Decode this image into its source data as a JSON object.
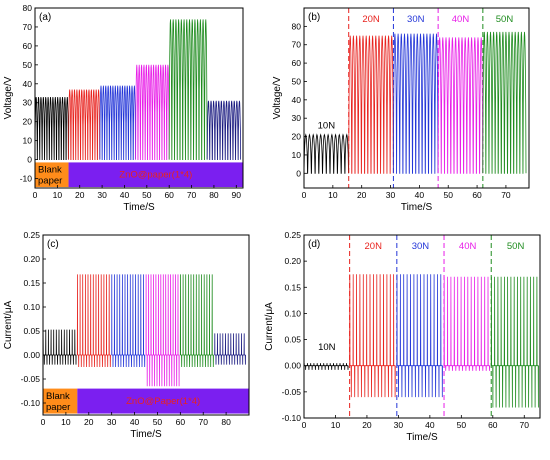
{
  "chart_data": [
    {
      "type": "line",
      "panel_label": "(a)",
      "xlabel": "Time/S",
      "ylabel": "Voltage/V",
      "xlim": [
        0,
        93
      ],
      "ylim": [
        -15,
        80
      ],
      "xticks": [
        0,
        10,
        20,
        30,
        40,
        50,
        60,
        70,
        80,
        90
      ],
      "yticks": [
        -10,
        0,
        10,
        20,
        30,
        40,
        50,
        60,
        70,
        80
      ],
      "grid": false,
      "series": [
        {
          "color": "#000000",
          "x_range": [
            0,
            15
          ],
          "peak": 33,
          "trough": 0,
          "cycles": 14
        },
        {
          "color": "#e8231f",
          "x_range": [
            15,
            29
          ],
          "peak": 37,
          "trough": 0,
          "cycles": 13
        },
        {
          "color": "#2436d8",
          "x_range": [
            29,
            45
          ],
          "peak": 39,
          "trough": 0,
          "cycles": 15
        },
        {
          "color": "#e81de8",
          "x_range": [
            45,
            60
          ],
          "peak": 50,
          "trough": 0,
          "cycles": 14
        },
        {
          "color": "#1f8c1f",
          "x_range": [
            60,
            77
          ],
          "peak": 74,
          "trough": 0,
          "cycles": 14
        },
        {
          "color": "#1a1a80",
          "x_range": [
            77,
            92
          ],
          "peak": 31,
          "trough": 0,
          "cycles": 13
        }
      ],
      "bands": [
        {
          "label": "Blank paper",
          "x_range": [
            0,
            15
          ],
          "color": "#ff8c1a"
        },
        {
          "label": "ZnO@paper(1*4)",
          "x_range": [
            15,
            93
          ],
          "color": "#7b1ff0"
        }
      ]
    },
    {
      "type": "line",
      "panel_label": "(b)",
      "xlabel": "Time/S",
      "ylabel": "Voltage/V",
      "xlim": [
        0,
        78
      ],
      "ylim": [
        -8,
        90
      ],
      "xticks": [
        0,
        10,
        20,
        30,
        40,
        50,
        60,
        70
      ],
      "yticks": [
        0,
        10,
        20,
        30,
        40,
        50,
        60,
        70,
        80
      ],
      "grid": false,
      "series": [
        {
          "label": "10N",
          "color": "#000000",
          "x_range": [
            0,
            15.5
          ],
          "peak": 21,
          "trough": 0,
          "cycles": 12
        },
        {
          "label": "20N",
          "color": "#e8231f",
          "x_range": [
            15.5,
            31
          ],
          "peak": 75,
          "trough": 0,
          "cycles": 14
        },
        {
          "label": "30N",
          "color": "#2436d8",
          "x_range": [
            31,
            46.5
          ],
          "peak": 76,
          "trough": 0,
          "cycles": 14
        },
        {
          "label": "40N",
          "color": "#e81de8",
          "x_range": [
            46.5,
            62
          ],
          "peak": 74,
          "trough": 0,
          "cycles": 14
        },
        {
          "label": "50N",
          "color": "#1f8c1f",
          "x_range": [
            62,
            77
          ],
          "peak": 77,
          "trough": 0,
          "cycles": 14
        }
      ],
      "dividers": [
        15.5,
        31,
        46.5,
        62
      ]
    },
    {
      "type": "line",
      "panel_label": "(c)",
      "xlabel": "Time/S",
      "ylabel": "Current/μA",
      "xlim": [
        0,
        90
      ],
      "ylim": [
        -0.125,
        0.25
      ],
      "xticks": [
        0,
        10,
        20,
        30,
        40,
        50,
        60,
        70,
        80
      ],
      "yticks": [
        -0.1,
        -0.05,
        0.0,
        0.05,
        0.1,
        0.15,
        0.2,
        0.25
      ],
      "grid": false,
      "series": [
        {
          "color": "#000000",
          "x_range": [
            0,
            15
          ],
          "peak": 0.053,
          "trough": -0.02,
          "cycles": 13
        },
        {
          "color": "#e8231f",
          "x_range": [
            15,
            30
          ],
          "peak": 0.168,
          "trough": -0.025,
          "cycles": 13
        },
        {
          "color": "#2436d8",
          "x_range": [
            30,
            45
          ],
          "peak": 0.168,
          "trough": -0.025,
          "cycles": 13
        },
        {
          "color": "#e81de8",
          "x_range": [
            45,
            60
          ],
          "peak": 0.168,
          "trough": -0.065,
          "cycles": 14
        },
        {
          "color": "#1f8c1f",
          "x_range": [
            60,
            75
          ],
          "peak": 0.168,
          "trough": -0.025,
          "cycles": 13
        },
        {
          "color": "#1a1a80",
          "x_range": [
            75,
            89
          ],
          "peak": 0.045,
          "trough": -0.02,
          "cycles": 12
        }
      ],
      "bands": [
        {
          "label": "Blank paper",
          "x_range": [
            0,
            15
          ],
          "color": "#ff8c1a"
        },
        {
          "label": "ZnO@Paper(1*4)",
          "x_range": [
            15,
            90
          ],
          "color": "#7b1ff0"
        }
      ]
    },
    {
      "type": "line",
      "panel_label": "(d)",
      "xlabel": "Time/S",
      "ylabel": "Current/μA",
      "xlim": [
        0,
        75
      ],
      "ylim": [
        -0.1,
        0.25
      ],
      "xticks": [
        0,
        10,
        20,
        30,
        40,
        50,
        60,
        70
      ],
      "yticks": [
        -0.1,
        -0.05,
        0.0,
        0.05,
        0.1,
        0.15,
        0.2,
        0.25
      ],
      "grid": false,
      "series": [
        {
          "label": "10N",
          "color": "#000000",
          "x_range": [
            0,
            14.5
          ],
          "peak": 0.005,
          "trough": -0.008,
          "cycles": 14
        },
        {
          "label": "20N",
          "color": "#e8231f",
          "x_range": [
            14.5,
            29.5
          ],
          "peak": 0.175,
          "trough": -0.06,
          "cycles": 14
        },
        {
          "label": "30N",
          "color": "#2436d8",
          "x_range": [
            29.5,
            44.5
          ],
          "peak": 0.175,
          "trough": -0.06,
          "cycles": 14
        },
        {
          "label": "40N",
          "color": "#e81de8",
          "x_range": [
            44.5,
            59.5
          ],
          "peak": 0.17,
          "trough": -0.01,
          "cycles": 14
        },
        {
          "label": "50N",
          "color": "#1f8c1f",
          "x_range": [
            59.5,
            75
          ],
          "peak": 0.17,
          "trough": -0.08,
          "cycles": 15
        }
      ],
      "dividers": [
        14.5,
        29.5,
        44.5,
        59.5
      ]
    }
  ]
}
